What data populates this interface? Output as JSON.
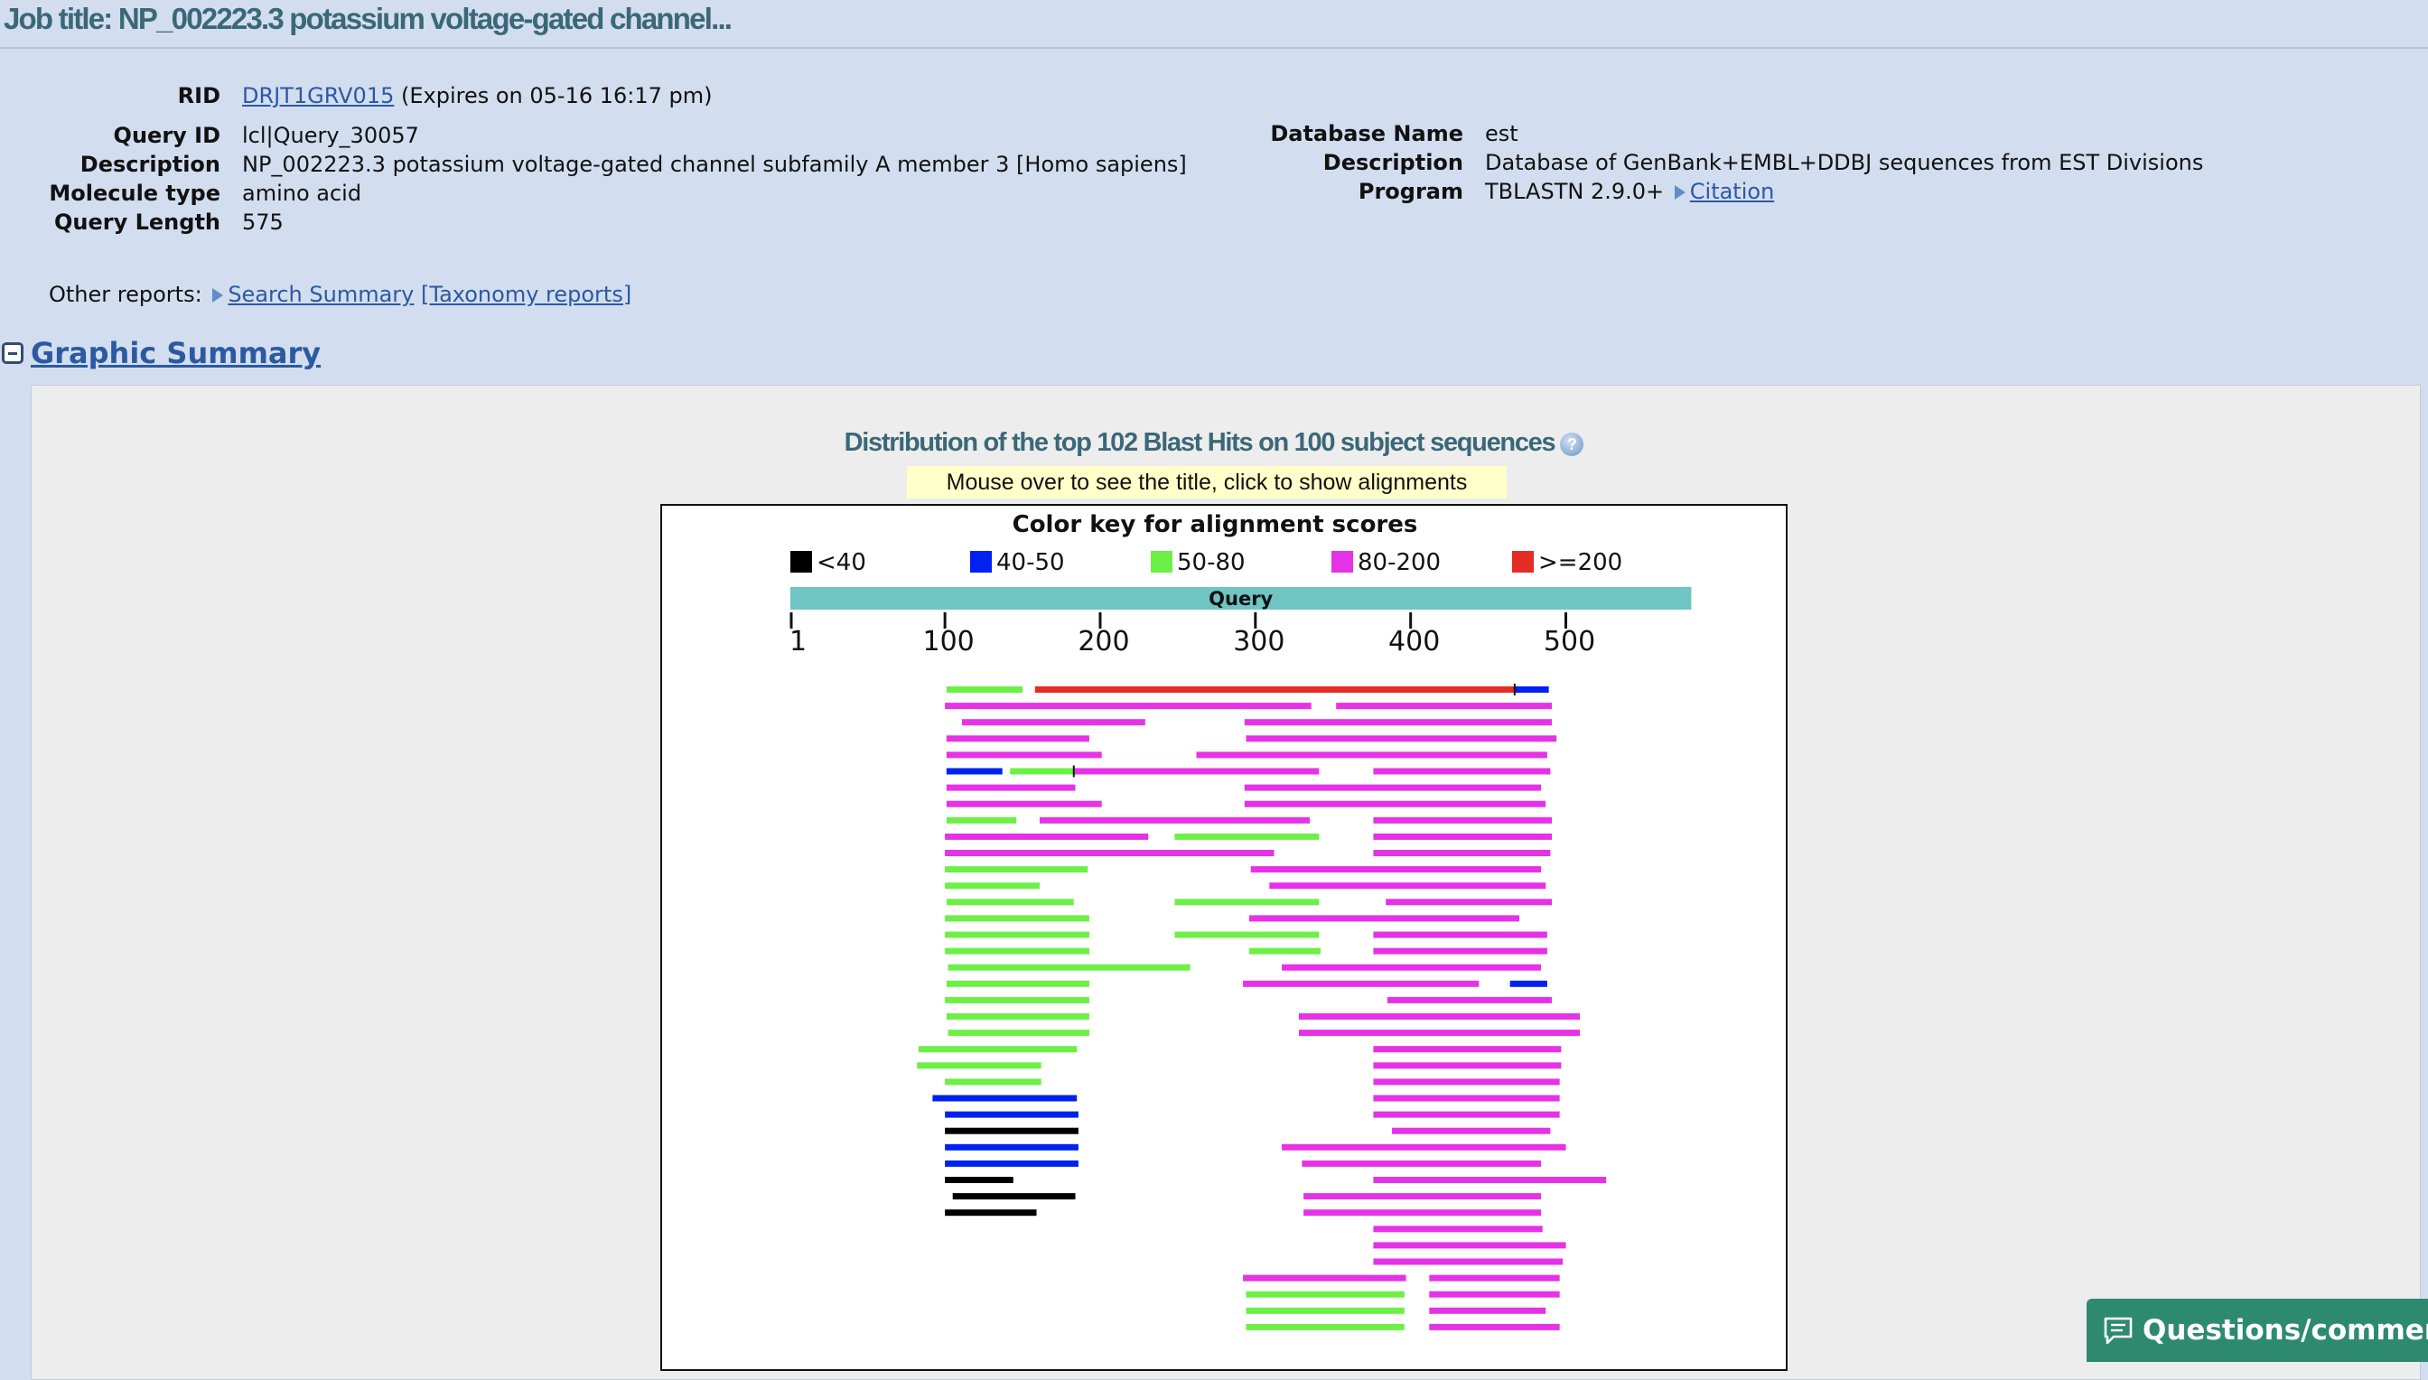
{
  "job_title": "Job title: NP_002223.3 potassium voltage-gated channel...",
  "rid": {
    "label": "RID",
    "value": "DRJT1GRV015",
    "expires": "(Expires on 05-16 16:17 pm)"
  },
  "query": {
    "id_label": "Query ID",
    "id": "lcl|Query_30057",
    "desc_label": "Description",
    "description": "NP_002223.3 potassium voltage-gated channel subfamily A member 3 [Homo sapiens]",
    "mol_label": "Molecule type",
    "molecule_type": "amino acid",
    "len_label": "Query Length",
    "length": "575"
  },
  "database": {
    "name_label": "Database Name",
    "name": "est",
    "desc_label": "Description",
    "description": "Database of GenBank+EMBL+DDBJ sequences from EST Divisions",
    "program_label": "Program",
    "program": "TBLASTN 2.9.0+",
    "citation": "Citation"
  },
  "other_reports": {
    "label": "Other reports:",
    "search_summary": "Search Summary",
    "taxonomy": "[Taxonomy reports]"
  },
  "graphic_summary": {
    "title": "Graphic Summary",
    "dist_title": "Distribution of the top 102 Blast Hits on 100 subject sequences",
    "hint": "Mouse over to see the title, click to show alignments"
  },
  "feedback_button": "Questions/comments",
  "chart_data": {
    "type": "blast-graphic-summary",
    "title": "Color key for alignment scores",
    "query_label": "Query",
    "query_length": 575,
    "axis_ticks": [
      1,
      100,
      200,
      300,
      400,
      500
    ],
    "legend": [
      {
        "label": "<40",
        "color": "#000000"
      },
      {
        "label": "40-50",
        "color": "#0021f0"
      },
      {
        "label": "50-80",
        "color": "#6cf046"
      },
      {
        "label": "80-200",
        "color": "#e632e6"
      },
      {
        "label": ">=200",
        "color": "#e42d25"
      }
    ],
    "rows": [
      [
        {
          "start": 101,
          "end": 150,
          "score": "50-80"
        },
        {
          "start": 158,
          "end": 467,
          "score": ">=200"
        },
        {
          "start": 467,
          "end": 489,
          "score": "40-50"
        }
      ],
      [
        {
          "start": 100,
          "end": 336,
          "score": "80-200"
        },
        {
          "start": 352,
          "end": 491,
          "score": "80-200"
        }
      ],
      [
        {
          "start": 111,
          "end": 229,
          "score": "80-200"
        },
        {
          "start": 293,
          "end": 491,
          "score": "80-200"
        }
      ],
      [
        {
          "start": 101,
          "end": 193,
          "score": "80-200"
        },
        {
          "start": 294,
          "end": 494,
          "score": "80-200"
        }
      ],
      [
        {
          "start": 101,
          "end": 201,
          "score": "80-200"
        },
        {
          "start": 262,
          "end": 488,
          "score": "80-200"
        }
      ],
      [
        {
          "start": 101,
          "end": 137,
          "score": "40-50"
        },
        {
          "start": 142,
          "end": 183,
          "score": "50-80"
        },
        {
          "start": 183,
          "end": 341,
          "score": "80-200"
        },
        {
          "start": 376,
          "end": 490,
          "score": "80-200"
        }
      ],
      [
        {
          "start": 101,
          "end": 184,
          "score": "80-200"
        },
        {
          "start": 293,
          "end": 484,
          "score": "80-200"
        }
      ],
      [
        {
          "start": 101,
          "end": 201,
          "score": "80-200"
        },
        {
          "start": 293,
          "end": 487,
          "score": "80-200"
        }
      ],
      [
        {
          "start": 101,
          "end": 146,
          "score": "50-80"
        },
        {
          "start": 161,
          "end": 335,
          "score": "80-200"
        },
        {
          "start": 376,
          "end": 491,
          "score": "80-200"
        }
      ],
      [
        {
          "start": 100,
          "end": 231,
          "score": "80-200"
        },
        {
          "start": 248,
          "end": 341,
          "score": "50-80"
        },
        {
          "start": 376,
          "end": 491,
          "score": "80-200"
        }
      ],
      [
        {
          "start": 100,
          "end": 312,
          "score": "80-200"
        },
        {
          "start": 376,
          "end": 490,
          "score": "80-200"
        }
      ],
      [
        {
          "start": 100,
          "end": 192,
          "score": "50-80"
        },
        {
          "start": 297,
          "end": 484,
          "score": "80-200"
        }
      ],
      [
        {
          "start": 100,
          "end": 161,
          "score": "50-80"
        },
        {
          "start": 309,
          "end": 487,
          "score": "80-200"
        }
      ],
      [
        {
          "start": 101,
          "end": 183,
          "score": "50-80"
        },
        {
          "start": 248,
          "end": 341,
          "score": "50-80"
        },
        {
          "start": 384,
          "end": 491,
          "score": "80-200"
        }
      ],
      [
        {
          "start": 100,
          "end": 193,
          "score": "50-80"
        },
        {
          "start": 296,
          "end": 470,
          "score": "80-200"
        }
      ],
      [
        {
          "start": 100,
          "end": 193,
          "score": "50-80"
        },
        {
          "start": 248,
          "end": 341,
          "score": "50-80"
        },
        {
          "start": 376,
          "end": 488,
          "score": "80-200"
        }
      ],
      [
        {
          "start": 100,
          "end": 193,
          "score": "50-80"
        },
        {
          "start": 296,
          "end": 342,
          "score": "50-80"
        },
        {
          "start": 376,
          "end": 488,
          "score": "80-200"
        }
      ],
      [
        {
          "start": 102,
          "end": 258,
          "score": "50-80"
        },
        {
          "start": 317,
          "end": 484,
          "score": "80-200"
        }
      ],
      [
        {
          "start": 101,
          "end": 193,
          "score": "50-80"
        },
        {
          "start": 292,
          "end": 444,
          "score": "80-200"
        },
        {
          "start": 464,
          "end": 488,
          "score": "40-50"
        }
      ],
      [
        {
          "start": 100,
          "end": 193,
          "score": "50-80"
        },
        {
          "start": 385,
          "end": 491,
          "score": "80-200"
        }
      ],
      [
        {
          "start": 101,
          "end": 193,
          "score": "50-80"
        },
        {
          "start": 328,
          "end": 509,
          "score": "80-200"
        }
      ],
      [
        {
          "start": 102,
          "end": 193,
          "score": "50-80"
        },
        {
          "start": 328,
          "end": 509,
          "score": "80-200"
        }
      ],
      [
        {
          "start": 83,
          "end": 185,
          "score": "50-80"
        },
        {
          "start": 376,
          "end": 497,
          "score": "80-200"
        }
      ],
      [
        {
          "start": 82,
          "end": 162,
          "score": "50-80"
        },
        {
          "start": 376,
          "end": 497,
          "score": "80-200"
        }
      ],
      [
        {
          "start": 100,
          "end": 162,
          "score": "50-80"
        },
        {
          "start": 376,
          "end": 496,
          "score": "80-200"
        }
      ],
      [
        {
          "start": 92,
          "end": 185,
          "score": "40-50"
        },
        {
          "start": 376,
          "end": 496,
          "score": "80-200"
        }
      ],
      [
        {
          "start": 100,
          "end": 186,
          "score": "40-50"
        },
        {
          "start": 376,
          "end": 496,
          "score": "80-200"
        }
      ],
      [
        {
          "start": 100,
          "end": 186,
          "score": "<40"
        },
        {
          "start": 388,
          "end": 490,
          "score": "80-200"
        }
      ],
      [
        {
          "start": 100,
          "end": 186,
          "score": "40-50"
        },
        {
          "start": 317,
          "end": 500,
          "score": "80-200"
        }
      ],
      [
        {
          "start": 100,
          "end": 186,
          "score": "40-50"
        },
        {
          "start": 330,
          "end": 484,
          "score": "80-200"
        }
      ],
      [
        {
          "start": 100,
          "end": 144,
          "score": "<40"
        },
        {
          "start": 376,
          "end": 526,
          "score": "80-200"
        }
      ],
      [
        {
          "start": 105,
          "end": 184,
          "score": "<40"
        },
        {
          "start": 331,
          "end": 484,
          "score": "80-200"
        }
      ],
      [
        {
          "start": 100,
          "end": 159,
          "score": "<40"
        },
        {
          "start": 331,
          "end": 484,
          "score": "80-200"
        }
      ],
      [
        {
          "start": 376,
          "end": 485,
          "score": "80-200"
        }
      ],
      [
        {
          "start": 376,
          "end": 500,
          "score": "80-200"
        }
      ],
      [
        {
          "start": 376,
          "end": 498,
          "score": "80-200"
        }
      ],
      [
        {
          "start": 292,
          "end": 397,
          "score": "80-200"
        },
        {
          "start": 412,
          "end": 496,
          "score": "80-200"
        }
      ],
      [
        {
          "start": 294,
          "end": 396,
          "score": "50-80"
        },
        {
          "start": 412,
          "end": 496,
          "score": "80-200"
        }
      ],
      [
        {
          "start": 294,
          "end": 396,
          "score": "50-80"
        },
        {
          "start": 412,
          "end": 487,
          "score": "80-200"
        }
      ],
      [
        {
          "start": 294,
          "end": 396,
          "score": "50-80"
        },
        {
          "start": 412,
          "end": 496,
          "score": "80-200"
        }
      ]
    ]
  }
}
